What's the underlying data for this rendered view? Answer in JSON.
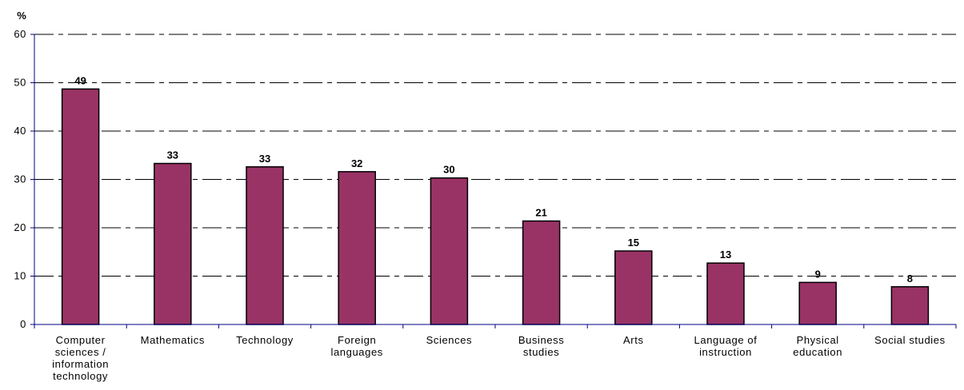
{
  "chart_data": {
    "type": "bar",
    "categories": [
      [
        "Computer",
        "sciences /",
        "information",
        "technology"
      ],
      [
        "Mathematics"
      ],
      [
        "Technology"
      ],
      [
        "Foreign",
        "languages"
      ],
      [
        "Sciences"
      ],
      [
        "Business",
        "studies"
      ],
      [
        "Arts"
      ],
      [
        "Language of",
        "instruction"
      ],
      [
        "Physical",
        "education"
      ],
      [
        "Social studies"
      ]
    ],
    "values": [
      48.7,
      33.3,
      32.6,
      31.6,
      30.3,
      21.4,
      15.2,
      12.7,
      8.7,
      7.8
    ],
    "data_labels": [
      "49",
      "33",
      "33",
      "32",
      "30",
      "21",
      "15",
      "13",
      "9",
      "8"
    ],
    "yunit": "%",
    "ylim": [
      0,
      60
    ],
    "yticks": [
      0,
      10,
      20,
      30,
      40,
      50,
      60
    ],
    "grid": true,
    "legend": "none",
    "colors": {
      "bar_fill": "#993366",
      "bar_stroke": "#000000",
      "axis": "#000080",
      "grid": "#000000"
    }
  }
}
